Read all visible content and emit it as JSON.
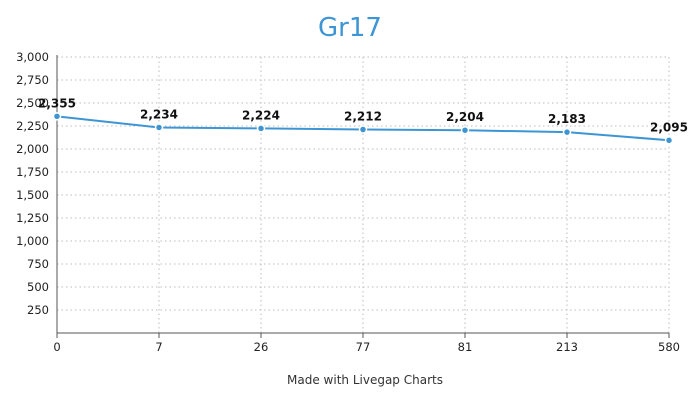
{
  "chart_data": {
    "type": "line",
    "title": "Gr17",
    "xlabel": "",
    "ylabel": "",
    "categories": [
      "0",
      "7",
      "26",
      "77",
      "81",
      "213",
      "580"
    ],
    "series": [
      {
        "values": [
          2355,
          2234,
          2224,
          2212,
          2204,
          2183,
          2095
        ],
        "labels": [
          "2,355",
          "2,234",
          "2,224",
          "2,212",
          "2,204",
          "2,183",
          "2,095"
        ],
        "color": "#3d95d4"
      }
    ],
    "ylim": [
      0,
      3000
    ],
    "yticks": [
      250,
      500,
      750,
      1000,
      1250,
      1500,
      1750,
      2000,
      2250,
      2500,
      2750,
      3000
    ],
    "ytick_labels": [
      "250",
      "500",
      "750",
      "1,000",
      "1,250",
      "1,500",
      "1,750",
      "2,000",
      "2,250",
      "2,500",
      "2,750",
      "3,000"
    ],
    "grid": true,
    "legend": "none"
  },
  "footer": {
    "credit": "Made with Livegap Charts"
  }
}
